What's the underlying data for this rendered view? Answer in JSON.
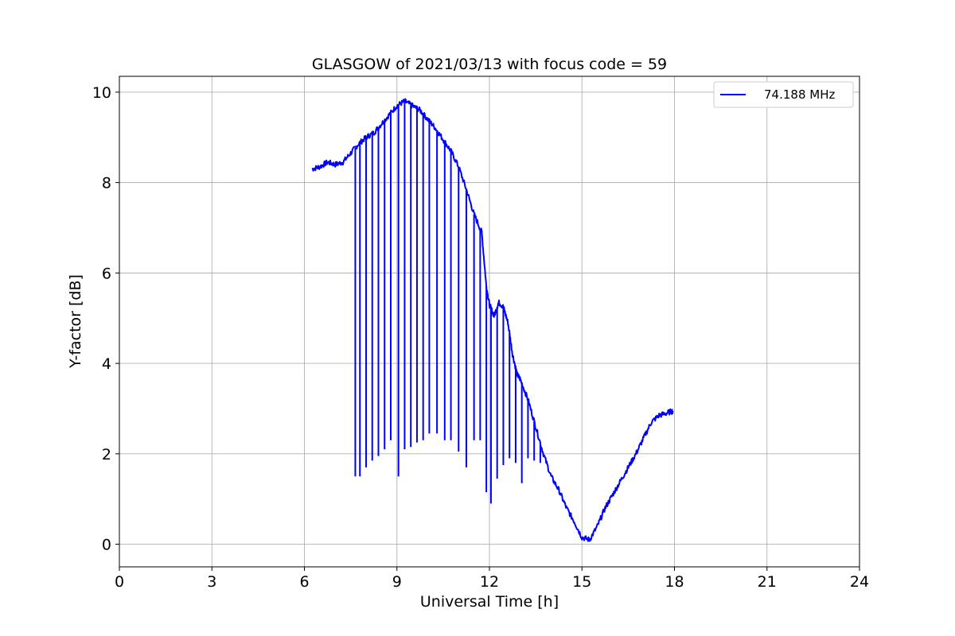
{
  "chart_data": {
    "type": "line",
    "title": "GLASGOW of 2021/03/13 with focus code = 59",
    "xlabel": "Universal Time [h]",
    "ylabel": "Y-factor [dB]",
    "xlim": [
      0,
      24
    ],
    "ylim": [
      -0.5,
      10.35
    ],
    "xticks": [
      0,
      3,
      6,
      9,
      12,
      15,
      18,
      21,
      24
    ],
    "yticks": [
      0,
      2,
      4,
      6,
      8,
      10
    ],
    "grid": true,
    "legend": "top-right",
    "series": [
      {
        "name": "74.188 MHz",
        "color": "#0000ff",
        "x": [
          6.25,
          6.5,
          6.75,
          7.0,
          7.25,
          7.5,
          7.75,
          8.0,
          8.25,
          8.5,
          8.75,
          9.0,
          9.25,
          9.5,
          9.75,
          10.0,
          10.25,
          10.5,
          10.75,
          11.0,
          11.25,
          11.5,
          11.75,
          11.9,
          12.0,
          12.15,
          12.3,
          12.45,
          12.6,
          12.75,
          12.9,
          13.0,
          13.25,
          13.5,
          13.75,
          14.0,
          14.25,
          14.5,
          14.75,
          15.0,
          15.25,
          15.5,
          15.75,
          16.0,
          16.25,
          16.5,
          16.75,
          17.0,
          17.25,
          17.5,
          17.75,
          17.95
        ],
        "y": [
          8.3,
          8.35,
          8.45,
          8.4,
          8.45,
          8.65,
          8.85,
          9.0,
          9.1,
          9.3,
          9.5,
          9.7,
          9.8,
          9.7,
          9.6,
          9.4,
          9.2,
          8.95,
          8.7,
          8.35,
          7.85,
          7.3,
          6.9,
          5.7,
          5.3,
          5.05,
          5.35,
          5.25,
          4.9,
          4.2,
          3.75,
          3.65,
          3.2,
          2.6,
          2.0,
          1.5,
          1.2,
          0.8,
          0.5,
          0.15,
          0.1,
          0.4,
          0.8,
          1.1,
          1.4,
          1.7,
          2.0,
          2.35,
          2.7,
          2.85,
          2.9,
          2.95
        ]
      }
    ],
    "dropouts": {
      "x": [
        7.65,
        7.8,
        8.0,
        8.2,
        8.4,
        8.6,
        8.8,
        9.05,
        9.25,
        9.45,
        9.65,
        9.85,
        10.05,
        10.3,
        10.55,
        10.75,
        11.0,
        11.25,
        11.5,
        11.7,
        11.9,
        12.05,
        12.25,
        12.45,
        12.65,
        12.85,
        13.05,
        13.25,
        13.45,
        13.65
      ],
      "y": [
        1.5,
        1.5,
        1.7,
        1.85,
        1.95,
        2.1,
        2.3,
        1.5,
        2.1,
        2.15,
        2.25,
        2.3,
        2.45,
        2.45,
        2.3,
        2.3,
        2.05,
        1.7,
        2.3,
        2.3,
        1.15,
        0.9,
        1.45,
        1.75,
        1.9,
        1.8,
        1.35,
        1.9,
        1.85,
        1.8
      ]
    }
  }
}
